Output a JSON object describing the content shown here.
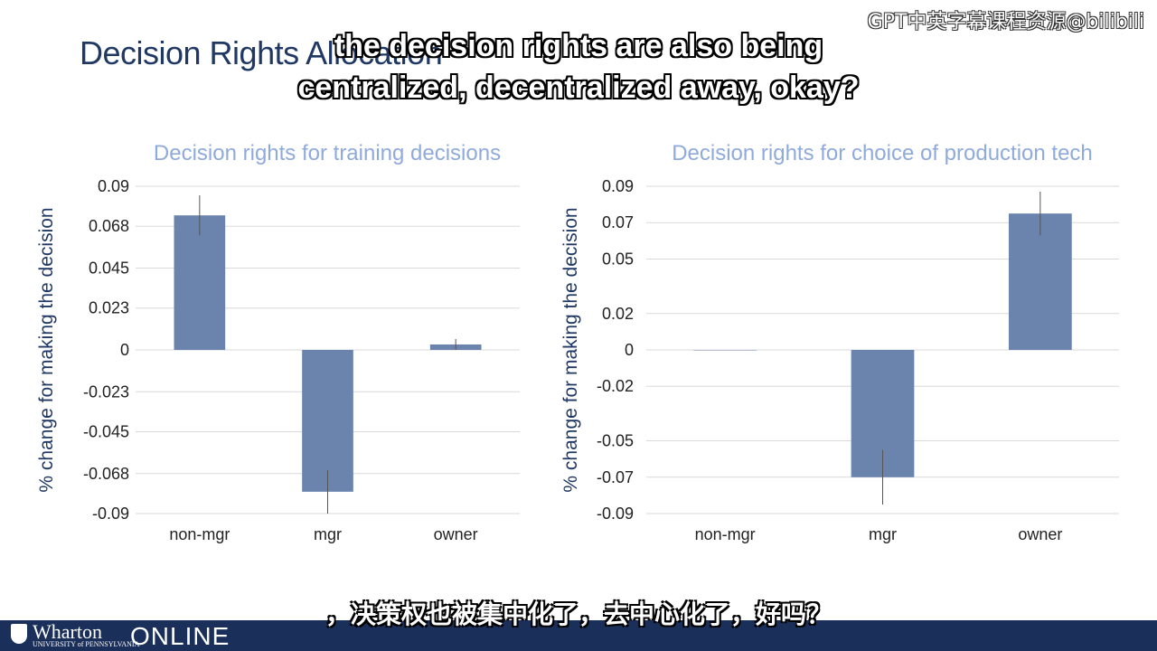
{
  "slide": {
    "title": "Decision Rights Allocation"
  },
  "captions": {
    "english_line1": "the decision rights are also being",
    "english_line2": "centralized, decentralized away, okay?",
    "chinese": "，决策权也被集中化了，去中心化了，好吗？",
    "watermark": "GPT中英字幕课程资源@bilibili"
  },
  "footer": {
    "brand_main": "Wharton",
    "brand_sub": "UNIVERSITY of PENNSYLVANIA",
    "brand_online": "ONLINE"
  },
  "colors": {
    "bar": "#6b84ad",
    "title": "#8faadc",
    "footer": "#1a2f5a"
  },
  "chart_data": [
    {
      "type": "bar",
      "title": "Decision rights for training decisions",
      "ylabel": "% change for making the decision",
      "categories": [
        "non-mgr",
        "mgr",
        "owner"
      ],
      "values": [
        0.074,
        -0.078,
        0.003
      ],
      "error": [
        0.011,
        0.012,
        0.003
      ],
      "yticks": [
        0.09,
        0.068,
        0.045,
        0.023,
        0,
        -0.023,
        -0.045,
        -0.068,
        -0.09
      ],
      "ytick_labels": [
        "0.09",
        "0.068",
        "0.045",
        "0.023",
        "0",
        "-0.023",
        "-0.045",
        "-0.068",
        "-0.09"
      ],
      "ylim": [
        -0.09,
        0.09
      ],
      "grid": true
    },
    {
      "type": "bar",
      "title": "Decision rights for choice of production tech",
      "ylabel": "% change for making the decision",
      "categories": [
        "non-mgr",
        "mgr",
        "owner"
      ],
      "values": [
        0,
        -0.07,
        0.075
      ],
      "error": [
        0,
        0.015,
        0.012
      ],
      "yticks": [
        0.09,
        0.07,
        0.05,
        0.02,
        0,
        -0.02,
        -0.05,
        -0.07,
        -0.09
      ],
      "ytick_labels": [
        "0.09",
        "0.07",
        "0.05",
        "0.02",
        "0",
        "-0.02",
        "-0.05",
        "-0.07",
        "-0.09"
      ],
      "ylim": [
        -0.09,
        0.09
      ],
      "grid": true
    }
  ]
}
